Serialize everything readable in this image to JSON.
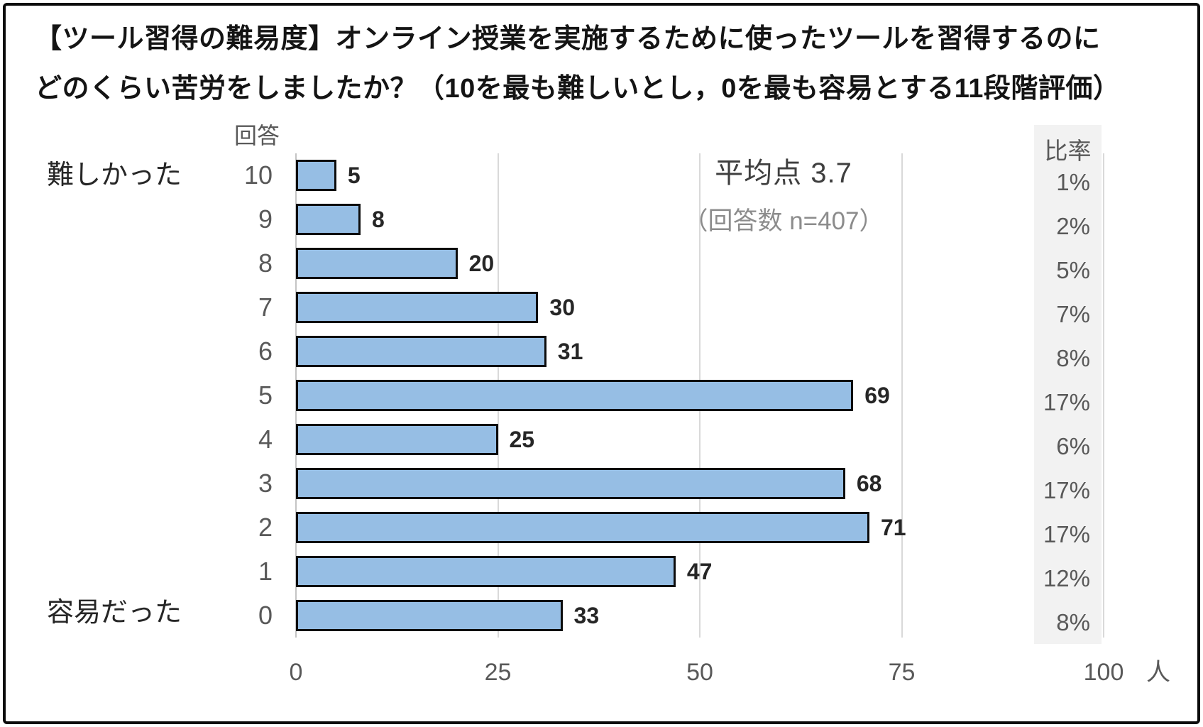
{
  "title": {
    "line1": "【ツール習得の難易度】オンライン授業を実施するために使ったツールを習得するのに",
    "line2": "どのくらい苦労をしましたか？（10を最も難しいとし，0を最も容易とする11段階評価）"
  },
  "chart_data": {
    "type": "bar",
    "orientation": "horizontal",
    "title": "【ツール習得の難易度】オンライン授業を実施するために使ったツールを習得するのにどのくらい苦労をしましたか？（10を最も難しいとし，0を最も容易とする11段階評価）",
    "category_header": "回答",
    "ratio_header": "比率",
    "top_label": "難しかった",
    "bottom_label": "容易だった",
    "categories": [
      "10",
      "9",
      "8",
      "7",
      "6",
      "5",
      "4",
      "3",
      "2",
      "1",
      "0"
    ],
    "values": [
      5,
      8,
      20,
      30,
      31,
      69,
      25,
      68,
      71,
      47,
      33
    ],
    "percentages": [
      "1%",
      "2%",
      "5%",
      "7%",
      "8%",
      "17%",
      "6%",
      "17%",
      "17%",
      "12%",
      "8%"
    ],
    "xlim": [
      0,
      100
    ],
    "x_ticks": [
      0,
      25,
      50,
      75,
      100
    ],
    "x_unit": "人",
    "grid": true,
    "legend": false,
    "annotation": {
      "mean": 3.7,
      "n": 407,
      "mean_text": "平均点 3.7",
      "n_text": "（回答数 n=407）"
    },
    "bar_color": "#96BEE4",
    "bar_border_color": "#0d0d0d",
    "band_color": "#f2f2f2"
  }
}
